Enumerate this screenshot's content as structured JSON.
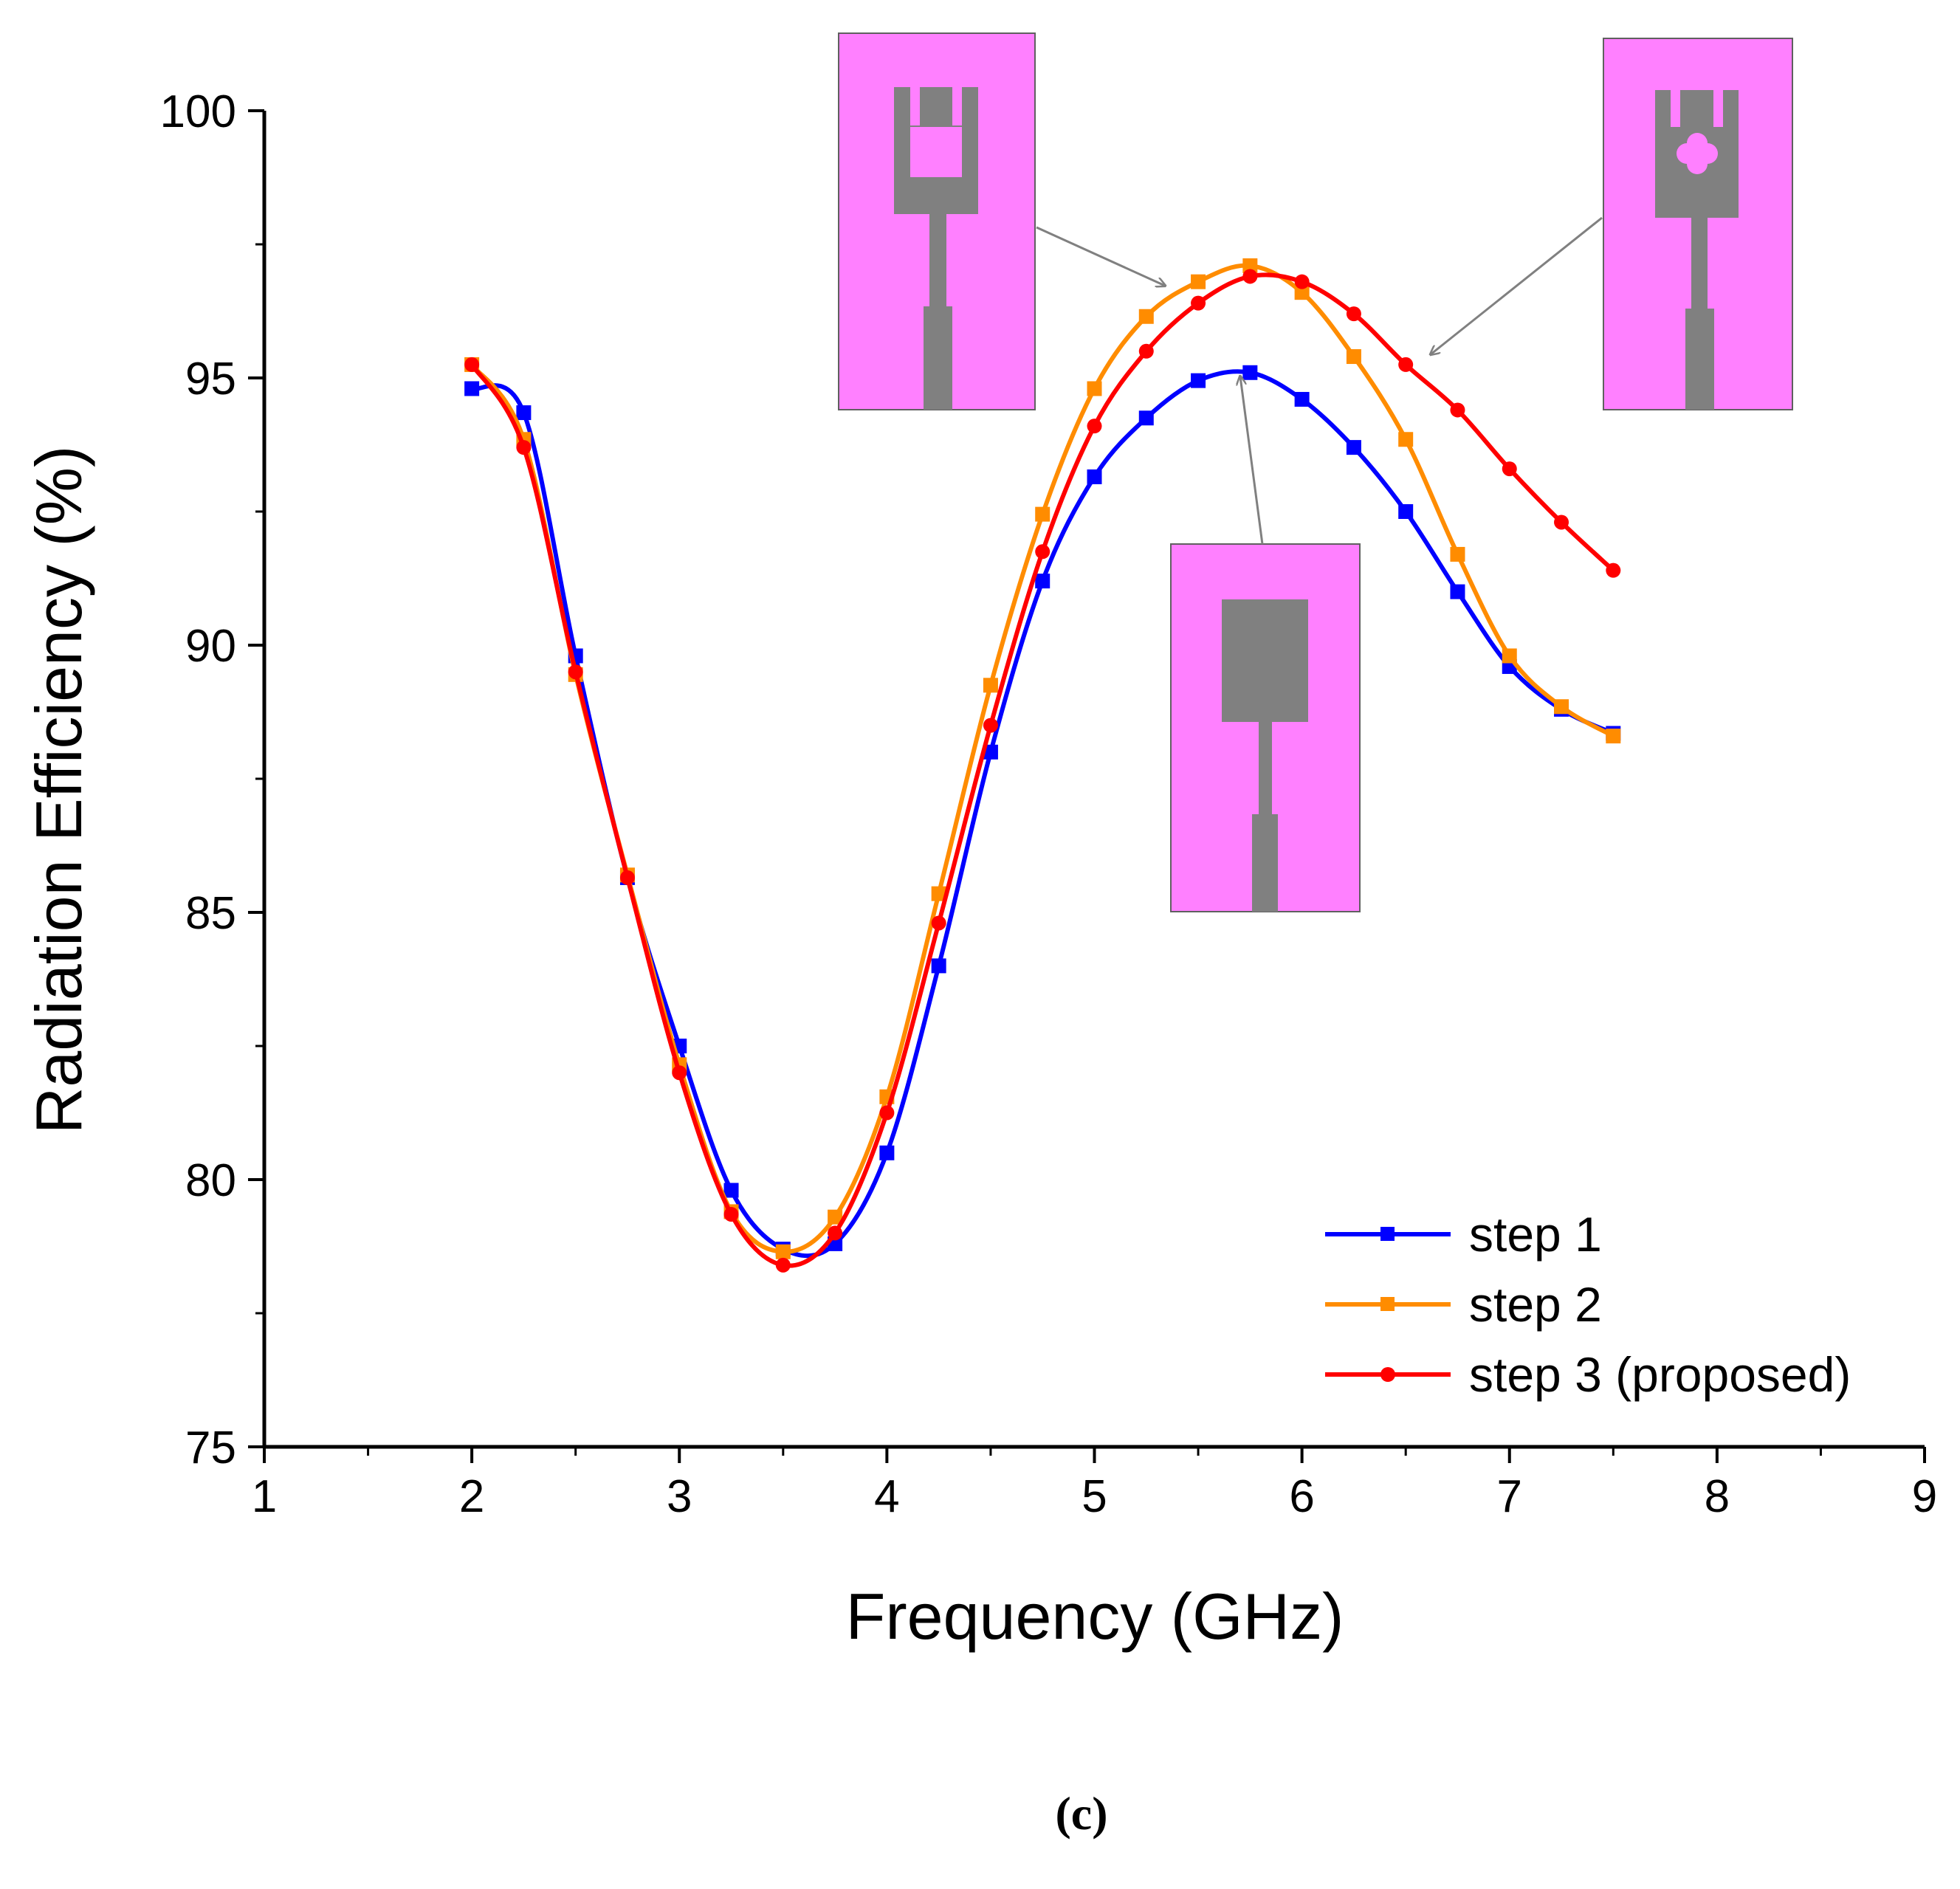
{
  "chart_data": {
    "type": "line",
    "title": "",
    "xlabel": "Frequency (GHz)",
    "ylabel": "Radiation Efficiency (%)",
    "xlim": [
      1,
      9
    ],
    "ylim": [
      75,
      100
    ],
    "xticks": [
      1,
      2,
      3,
      4,
      5,
      6,
      7,
      8,
      9
    ],
    "yticks": [
      75,
      80,
      85,
      90,
      95,
      100
    ],
    "x": [
      2,
      2.25,
      2.5,
      2.75,
      3,
      3.25,
      3.5,
      3.75,
      4,
      4.25,
      4.5,
      4.75,
      5,
      5.25,
      5.5,
      5.75,
      6,
      6.25,
      6.5,
      6.75,
      7,
      7.25,
      7.5
    ],
    "series": [
      {
        "name": "step 1",
        "color": "#0000ff",
        "marker": "square",
        "values": [
          94.8,
          94.35,
          89.8,
          85.65,
          82.5,
          79.8,
          78.7,
          78.8,
          80.5,
          84.0,
          88.0,
          91.2,
          93.15,
          94.25,
          94.95,
          95.1,
          94.6,
          93.7,
          92.5,
          91.0,
          89.6,
          88.8,
          88.35
        ]
      },
      {
        "name": "step 2",
        "color": "#ff8c00",
        "marker": "square",
        "values": [
          95.25,
          93.85,
          89.45,
          85.7,
          82.15,
          79.4,
          78.65,
          79.3,
          81.55,
          85.35,
          89.25,
          92.45,
          94.8,
          96.15,
          96.8,
          97.1,
          96.6,
          95.4,
          93.85,
          91.7,
          89.8,
          88.85,
          88.3
        ]
      },
      {
        "name": "step 3 (proposed)",
        "color": "#ff0000",
        "marker": "circle",
        "values": [
          95.25,
          93.7,
          89.5,
          85.65,
          82.0,
          79.35,
          78.4,
          79.0,
          81.25,
          84.8,
          88.5,
          91.75,
          94.1,
          95.5,
          96.4,
          96.9,
          96.8,
          96.2,
          95.25,
          94.4,
          93.3,
          92.3,
          91.4
        ]
      }
    ],
    "legend_position": "bottom-right",
    "insets": [
      {
        "name": "step-2-antenna-inset",
        "points_to": "step 2"
      },
      {
        "name": "step-3-antenna-inset",
        "points_to": "step 3 (proposed)"
      },
      {
        "name": "step-1-antenna-inset",
        "points_to": "step 1"
      }
    ],
    "substrate_color": "#ff80ff",
    "metal_color": "#808080"
  },
  "caption": "(c)"
}
